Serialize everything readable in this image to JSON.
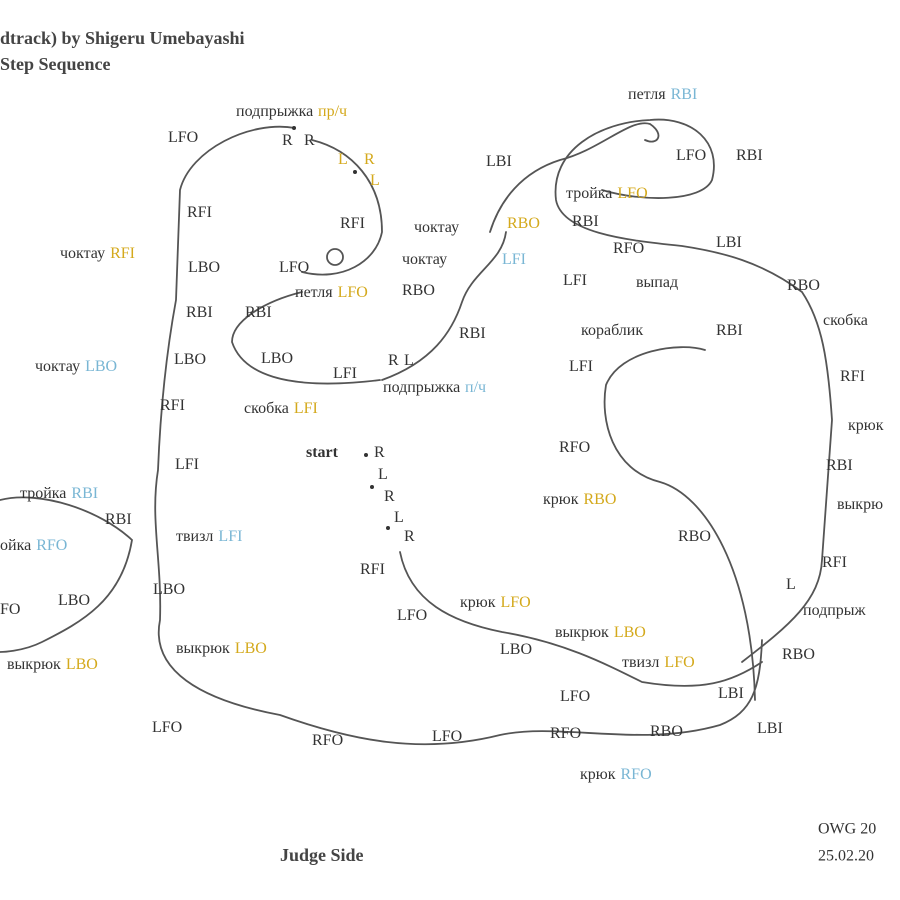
{
  "header": {
    "title": "dtrack) by Shigeru Umebayashi",
    "subtitle": "Step Sequence"
  },
  "labels": [
    {
      "text": "подпрыжка",
      "tag": "пр/ч",
      "tag_color": "#d4a91c"
    },
    {
      "text": "R"
    },
    {
      "text": "R"
    },
    {
      "text": "LFO"
    },
    {
      "text": "L",
      "color": "#d4a91c"
    },
    {
      "text": "R",
      "color": "#d4a91c"
    },
    {
      "text": "L",
      "color": "#d4a91c"
    },
    {
      "text": "RFI"
    },
    {
      "text": "RFI"
    },
    {
      "text": "чоктау",
      "tag": "RFI",
      "tag_color": "#d4a91c"
    },
    {
      "text": "LBO"
    },
    {
      "text": "LFO"
    },
    {
      "text": "петля",
      "tag": "LFO",
      "tag_color": "#d4a91c"
    },
    {
      "text": "RBI"
    },
    {
      "text": "RBI"
    },
    {
      "text": "чоктау",
      "tag": "LBO",
      "tag_color": "#79b6d4"
    },
    {
      "text": "LBO"
    },
    {
      "text": "LBO"
    },
    {
      "text": "LFI"
    },
    {
      "text": "R"
    },
    {
      "text": "L"
    },
    {
      "text": "подпрыжка",
      "tag": "п/ч",
      "tag_color": "#79b6d4"
    },
    {
      "text": "RFI"
    },
    {
      "text": "скобка",
      "tag": "LFI",
      "tag_color": "#d4a91c"
    },
    {
      "text": "LFI"
    },
    {
      "text": "тройка",
      "tag": "RBI",
      "tag_color": "#79b6d4"
    },
    {
      "text": "RBI"
    },
    {
      "text": "твизл",
      "tag": "LFI",
      "tag_color": "#79b6d4"
    },
    {
      "text": "ойка",
      "tag": "RFO",
      "tag_color": "#79b6d4"
    },
    {
      "text": "FO"
    },
    {
      "text": "LBO"
    },
    {
      "text": "LBO"
    },
    {
      "text": "выкрюк",
      "tag": "LBO",
      "tag_color": "#d4a91c"
    },
    {
      "text": "выкрюк",
      "tag": "LBO",
      "tag_color": "#d4a91c"
    },
    {
      "text": "LFO"
    },
    {
      "text": "RFO"
    },
    {
      "text": "LFO"
    },
    {
      "text": "RFO"
    },
    {
      "text": "RBO"
    },
    {
      "text": "LBI"
    },
    {
      "text": "крюк",
      "tag": "RFO",
      "tag_color": "#79b6d4"
    },
    {
      "text": "LFO"
    },
    {
      "text": "LBI"
    },
    {
      "text": "RBO"
    },
    {
      "text": "твизл",
      "tag": "LFO",
      "tag_color": "#d4a91c"
    },
    {
      "text": "выкрюк",
      "tag": "LBO",
      "tag_color": "#d4a91c"
    },
    {
      "text": "LBO"
    },
    {
      "text": "крюк",
      "tag": "LFO",
      "tag_color": "#d4a91c"
    },
    {
      "text": "LFO"
    },
    {
      "text": "RFI"
    },
    {
      "text": "start"
    },
    {
      "text": "R"
    },
    {
      "text": "L"
    },
    {
      "text": "R"
    },
    {
      "text": "L"
    },
    {
      "text": "R"
    },
    {
      "text": "RBO"
    },
    {
      "text": "крюк",
      "tag": "RBO",
      "tag_color": "#d4a91c"
    },
    {
      "text": "RFO"
    },
    {
      "text": "LFI"
    },
    {
      "text": "кораблик"
    },
    {
      "text": "RBI"
    },
    {
      "text": "L"
    },
    {
      "text": "подпрыж"
    },
    {
      "text": "RFI"
    },
    {
      "text": "выкрю"
    },
    {
      "text": "RBI"
    },
    {
      "text": "крюк"
    },
    {
      "text": "RFI"
    },
    {
      "text": "скобка"
    },
    {
      "text": "RBO"
    },
    {
      "text": "чоктау"
    },
    {
      "text": "RBO",
      "color": "#d4a91c"
    },
    {
      "text": "чоктау"
    },
    {
      "text": "LFI",
      "color": "#79b6d4"
    },
    {
      "text": "RBO"
    },
    {
      "text": "RBI"
    },
    {
      "text": "LBI"
    },
    {
      "text": "тройка",
      "tag": "LFO",
      "tag_color": "#d4a91c"
    },
    {
      "text": "RBI"
    },
    {
      "text": "RFO"
    },
    {
      "text": "LBI"
    },
    {
      "text": "LFI"
    },
    {
      "text": "выпад"
    },
    {
      "text": "петля",
      "tag": "RBI",
      "tag_color": "#79b6d4"
    },
    {
      "text": "LFO"
    },
    {
      "text": "RBI"
    }
  ],
  "footer": {
    "side": "Judge Side",
    "author": "OWG 20",
    "date": "25.02.20"
  }
}
